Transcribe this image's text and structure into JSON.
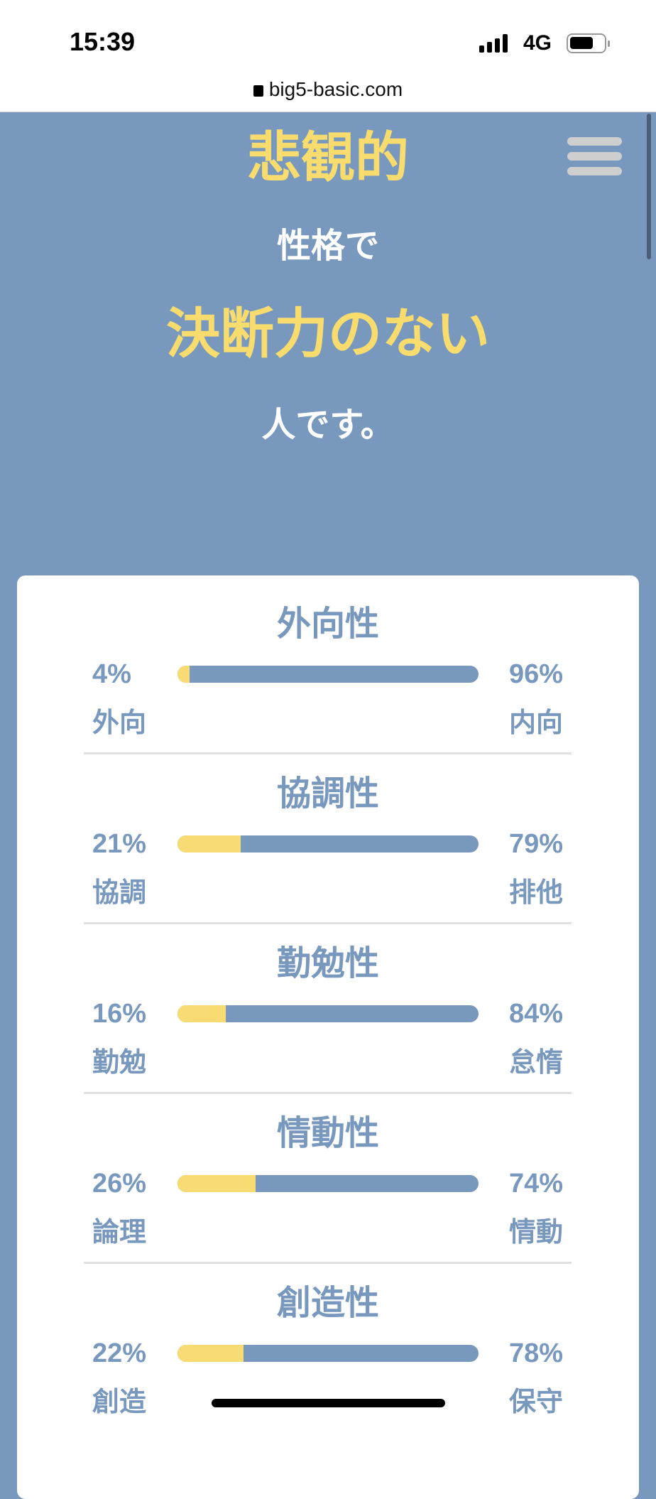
{
  "status_bar": {
    "time": "15:39",
    "network": "4G"
  },
  "browser": {
    "url": "big5-basic.com"
  },
  "hero": {
    "line1": "悲観的",
    "line2": "性格で",
    "line3": "決断力のない",
    "line4": "人です。"
  },
  "colors": {
    "background": "#7898be",
    "accent": "#f8dc73"
  },
  "traits": [
    {
      "title": "外向性",
      "left_percent": "4%",
      "right_percent": "96%",
      "left_label": "外向",
      "right_label": "内向",
      "value": 4
    },
    {
      "title": "協調性",
      "left_percent": "21%",
      "right_percent": "79%",
      "left_label": "協調",
      "right_label": "排他",
      "value": 21
    },
    {
      "title": "勤勉性",
      "left_percent": "16%",
      "right_percent": "84%",
      "left_label": "勤勉",
      "right_label": "怠惰",
      "value": 16
    },
    {
      "title": "情動性",
      "left_percent": "26%",
      "right_percent": "74%",
      "left_label": "論理",
      "right_label": "情動",
      "value": 26
    },
    {
      "title": "創造性",
      "left_percent": "22%",
      "right_percent": "78%",
      "left_label": "創造",
      "right_label": "保守",
      "value": 22
    }
  ]
}
